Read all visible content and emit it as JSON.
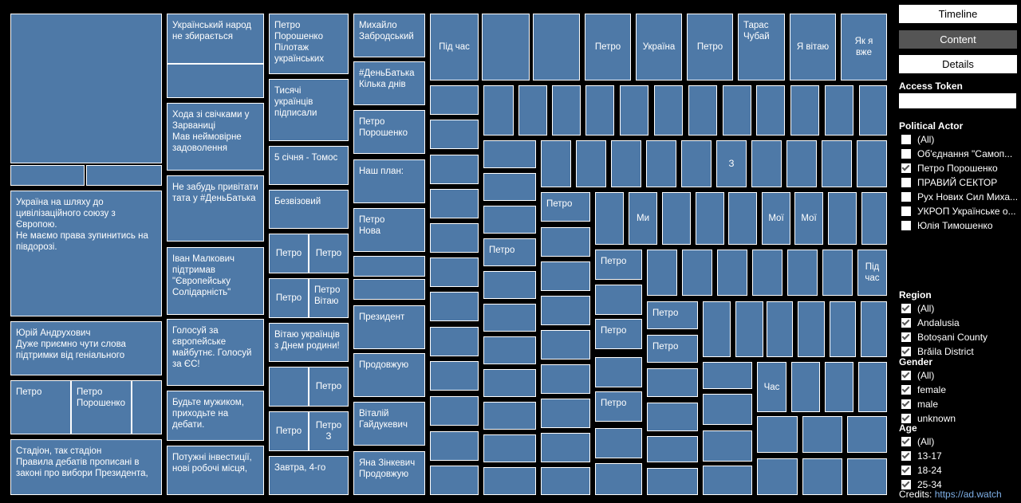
{
  "treemap": {
    "cells": [
      [
        "",
        13,
        17,
        190,
        188
      ],
      [
        "",
        13,
        207,
        93,
        26
      ],
      [
        "",
        108,
        207,
        95,
        26
      ],
      [
        "Україна на шляху до\nцивілізаційного союзу з\nЄвропою.\nНе маємо права зупинитись на\nпівдорозі.",
        13,
        239,
        190,
        158
      ],
      [
        "Юрій Андрухович\nДуже приємно чути слова\nпідтримки від геніального",
        13,
        403,
        190,
        68
      ],
      [
        "Петро",
        13,
        477,
        76,
        68
      ],
      [
        "Петро\nПорошенко",
        89,
        477,
        76,
        68
      ],
      [
        "",
        165,
        477,
        38,
        68
      ],
      [
        "Стадіон, так стадіон\nПравила дебатів прописані в\nзаконі про вибори Президента,",
        13,
        551,
        190,
        70
      ],
      [
        "Український народ\nне збирається",
        209,
        17,
        122,
        63
      ],
      [
        "",
        209,
        80,
        122,
        43
      ],
      [
        "Хода зі свічками у\nЗарваниці\nМав неймовірне\nзадоволення",
        209,
        129,
        122,
        85
      ],
      [
        "Не забудь привітати\nтата у #ДеньБатька",
        209,
        220,
        122,
        83
      ],
      [
        "Іван Малкович\nпідтримав\n\"Європейську\nСолідарність\"",
        209,
        310,
        122,
        85
      ],
      [
        "Голосуй за\nєвропейське\nмайбутнє. Голосуй\nза ЄС!",
        209,
        400,
        122,
        84
      ],
      [
        "Будьте мужиком,\nприходьте на\nдебати.",
        209,
        490,
        122,
        63
      ],
      [
        "Потужні інвестиції,\nнові робочі місця,",
        209,
        559,
        122,
        62
      ],
      [
        "Петро\nПорошенко\nПілотаж\nукраїнських",
        337,
        17,
        100,
        76
      ],
      [
        "Тисячі\nукраїнців\nпідписали",
        337,
        99,
        100,
        78
      ],
      [
        "5 січня - Томос",
        337,
        183,
        100,
        49
      ],
      [
        "Безвізовий",
        337,
        238,
        100,
        49
      ],
      [
        "Петро",
        337,
        293,
        50,
        50
      ],
      [
        "Петро",
        387,
        293,
        50,
        50
      ],
      [
        "Петро",
        337,
        349,
        50,
        50
      ],
      [
        "Петро\nВітаю",
        387,
        349,
        50,
        50
      ],
      [
        "Вітаю українців\nз Днем родини!",
        337,
        405,
        100,
        49
      ],
      [
        "",
        337,
        460,
        50,
        50
      ],
      [
        "Петро",
        387,
        460,
        50,
        50
      ],
      [
        "Петро",
        337,
        516,
        50,
        50
      ],
      [
        "Петро\nЗ",
        387,
        516,
        50,
        50
      ],
      [
        "Завтра, 4-го",
        337,
        572,
        100,
        49
      ],
      [
        "Михайло\nЗабродський",
        443,
        17,
        90,
        55
      ],
      [
        "#ДеньБатька\nКілька днів",
        443,
        77,
        90,
        55
      ],
      [
        "Петро\nПорошенко",
        443,
        138,
        90,
        55
      ],
      [
        "Наш план:",
        443,
        200,
        90,
        55
      ],
      [
        "Петро\nНова",
        443,
        261,
        90,
        55
      ],
      [
        "",
        443,
        321,
        90,
        26
      ],
      [
        "",
        443,
        350,
        90,
        26
      ],
      [
        "Президент",
        443,
        383,
        90,
        55
      ],
      [
        "Продовжую",
        443,
        443,
        90,
        55
      ],
      [
        "Віталій\nГайдукевич",
        443,
        504,
        90,
        55
      ],
      [
        "Яна Зінкевич\nПродовжую",
        443,
        566,
        90,
        55
      ],
      [
        "Під час",
        539,
        17,
        61,
        84
      ],
      [
        "",
        604,
        17,
        60,
        84
      ],
      [
        "",
        668,
        17,
        59,
        84
      ],
      [
        "Петро",
        733,
        17,
        58,
        84
      ],
      [
        "Україна",
        797,
        17,
        58,
        84
      ],
      [
        "Петро",
        861,
        17,
        58,
        84
      ],
      [
        "Тарас\nЧубай",
        925,
        17,
        59,
        84
      ],
      [
        "Я вітаю",
        990,
        17,
        58,
        84
      ],
      [
        "Як я\nвже",
        1054,
        17,
        58,
        84
      ],
      [
        "",
        539,
        107,
        61,
        37
      ],
      [
        "",
        539,
        150,
        61,
        37
      ],
      [
        "",
        539,
        194,
        61,
        37
      ],
      [
        "",
        539,
        237,
        61,
        37
      ],
      [
        "",
        539,
        280,
        61,
        37
      ],
      [
        "",
        539,
        323,
        61,
        37
      ],
      [
        "",
        539,
        366,
        61,
        37
      ],
      [
        "",
        539,
        410,
        61,
        37
      ],
      [
        "",
        539,
        453,
        61,
        37
      ],
      [
        "",
        539,
        497,
        61,
        37
      ],
      [
        "",
        539,
        541,
        61,
        37
      ],
      [
        "",
        539,
        584,
        61,
        37
      ],
      [
        "",
        606,
        107,
        38,
        63
      ],
      [
        "",
        650,
        107,
        36,
        63
      ],
      [
        "",
        692,
        107,
        36,
        63
      ],
      [
        "",
        734,
        107,
        36,
        63
      ],
      [
        "",
        777,
        107,
        36,
        63
      ],
      [
        "",
        820,
        107,
        36,
        63
      ],
      [
        "",
        863,
        107,
        36,
        63
      ],
      [
        "",
        906,
        107,
        36,
        63
      ],
      [
        "",
        948,
        107,
        36,
        63
      ],
      [
        "",
        991,
        107,
        36,
        63
      ],
      [
        "",
        1034,
        107,
        36,
        63
      ],
      [
        "",
        1077,
        107,
        35,
        63
      ],
      [
        "",
        606,
        176,
        66,
        35
      ],
      [
        "",
        606,
        217,
        66,
        35
      ],
      [
        "",
        606,
        258,
        66,
        35
      ],
      [
        "Петро",
        606,
        299,
        66,
        35
      ],
      [
        "",
        606,
        340,
        66,
        35
      ],
      [
        "",
        606,
        381,
        66,
        35
      ],
      [
        "",
        606,
        422,
        66,
        35
      ],
      [
        "",
        606,
        463,
        66,
        35
      ],
      [
        "",
        606,
        504,
        66,
        35
      ],
      [
        "",
        606,
        545,
        66,
        35
      ],
      [
        "",
        606,
        586,
        66,
        35
      ],
      [
        "",
        678,
        176,
        38,
        59
      ],
      [
        "",
        722,
        176,
        38,
        59
      ],
      [
        "",
        766,
        176,
        38,
        59
      ],
      [
        "",
        810,
        176,
        38,
        59
      ],
      [
        "",
        854,
        176,
        38,
        59
      ],
      [
        "З",
        898,
        176,
        38,
        59
      ],
      [
        "",
        942,
        176,
        38,
        59
      ],
      [
        "",
        986,
        176,
        38,
        59
      ],
      [
        "",
        1030,
        176,
        38,
        59
      ],
      [
        "",
        1074,
        176,
        38,
        59
      ],
      [
        "Петро",
        678,
        241,
        62,
        37
      ],
      [
        "",
        678,
        285,
        62,
        37
      ],
      [
        "",
        678,
        328,
        62,
        37
      ],
      [
        "",
        678,
        371,
        62,
        37
      ],
      [
        "",
        678,
        414,
        62,
        37
      ],
      [
        "",
        678,
        457,
        62,
        37
      ],
      [
        "",
        678,
        500,
        62,
        37
      ],
      [
        "",
        678,
        543,
        62,
        37
      ],
      [
        "",
        678,
        586,
        62,
        35
      ],
      [
        "",
        746,
        241,
        36,
        66
      ],
      [
        "Ми",
        788,
        241,
        36,
        66
      ],
      [
        "",
        830,
        241,
        36,
        66
      ],
      [
        "",
        872,
        241,
        36,
        66
      ],
      [
        "",
        913,
        241,
        36,
        66
      ],
      [
        "Мої",
        955,
        241,
        36,
        66
      ],
      [
        "Мої",
        996,
        241,
        36,
        66
      ],
      [
        "",
        1038,
        241,
        36,
        66
      ],
      [
        "",
        1080,
        241,
        32,
        66
      ],
      [
        "Петро",
        746,
        313,
        59,
        38
      ],
      [
        "",
        746,
        357,
        59,
        38
      ],
      [
        "Петро",
        746,
        400,
        59,
        38
      ],
      [
        "",
        746,
        448,
        59,
        38
      ],
      [
        "Петро",
        746,
        491,
        59,
        38
      ],
      [
        "",
        746,
        537,
        59,
        38
      ],
      [
        "",
        746,
        581,
        59,
        40
      ],
      [
        "",
        811,
        313,
        38,
        58
      ],
      [
        "",
        855,
        313,
        38,
        58
      ],
      [
        "",
        899,
        313,
        38,
        58
      ],
      [
        "",
        943,
        313,
        38,
        58
      ],
      [
        "",
        987,
        313,
        38,
        58
      ],
      [
        "",
        1031,
        313,
        38,
        58
      ],
      [
        "Під\nчас",
        1075,
        313,
        37,
        58
      ],
      [
        "Петро",
        811,
        378,
        64,
        35
      ],
      [
        "Петро",
        811,
        420,
        64,
        35
      ],
      [
        "",
        811,
        462,
        64,
        36
      ],
      [
        "",
        811,
        505,
        64,
        36
      ],
      [
        "",
        811,
        547,
        64,
        33
      ],
      [
        "",
        811,
        587,
        64,
        34
      ],
      [
        "",
        881,
        378,
        35,
        70
      ],
      [
        "",
        922,
        378,
        35,
        70
      ],
      [
        "",
        961,
        378,
        33,
        70
      ],
      [
        "",
        1000,
        378,
        34,
        70
      ],
      [
        "",
        1040,
        378,
        33,
        70
      ],
      [
        "",
        1079,
        378,
        33,
        70
      ],
      [
        "",
        881,
        454,
        62,
        34
      ],
      [
        "",
        881,
        494,
        62,
        39
      ],
      [
        "",
        881,
        540,
        62,
        39
      ],
      [
        "",
        881,
        584,
        62,
        37
      ],
      [
        "Час",
        949,
        454,
        37,
        63
      ],
      [
        "",
        992,
        454,
        36,
        63
      ],
      [
        "",
        1034,
        454,
        36,
        63
      ],
      [
        "",
        1076,
        454,
        36,
        63
      ],
      [
        "",
        949,
        522,
        51,
        46
      ],
      [
        "",
        1006,
        522,
        50,
        46
      ],
      [
        "",
        1062,
        522,
        50,
        46
      ],
      [
        "",
        949,
        575,
        51,
        46
      ],
      [
        "",
        1006,
        575,
        50,
        46
      ],
      [
        "",
        1062,
        575,
        50,
        46
      ]
    ]
  },
  "panel": {
    "buttons": {
      "timeline": "Timeline",
      "content": "Content",
      "details": "Details"
    },
    "access_token_label": "Access Token",
    "access_token_value": "",
    "political_actor": {
      "label": "Political Actor",
      "items": [
        {
          "label": "(All)",
          "checked": false
        },
        {
          "label": "Об'єднання \"Самоп...",
          "checked": false
        },
        {
          "label": "Петро Порошенко",
          "checked": true
        },
        {
          "label": "ПРАВИЙ СЕКТОР",
          "checked": false
        },
        {
          "label": "Рух Нових Сил Миха...",
          "checked": false
        },
        {
          "label": "УКРОП Українське о...",
          "checked": false
        },
        {
          "label": "Юлія Тимошенко",
          "checked": false
        }
      ]
    },
    "region": {
      "label": "Region",
      "items": [
        {
          "label": "(All)",
          "checked": true
        },
        {
          "label": "Andalusia",
          "checked": true
        },
        {
          "label": "Botoșani County",
          "checked": true
        },
        {
          "label": "Brăila District",
          "checked": true
        }
      ]
    },
    "gender": {
      "label": "Gender",
      "items": [
        {
          "label": "(All)",
          "checked": true
        },
        {
          "label": "female",
          "checked": true
        },
        {
          "label": "male",
          "checked": true
        },
        {
          "label": "unknown",
          "checked": true
        }
      ]
    },
    "age": {
      "label": "Age",
      "items": [
        {
          "label": "(All)",
          "checked": true
        },
        {
          "label": "13-17",
          "checked": true
        },
        {
          "label": "18-24",
          "checked": true
        },
        {
          "label": "25-34",
          "checked": true
        }
      ]
    },
    "credits_label": "Credits:",
    "credits_link": "https://ad.watch"
  }
}
